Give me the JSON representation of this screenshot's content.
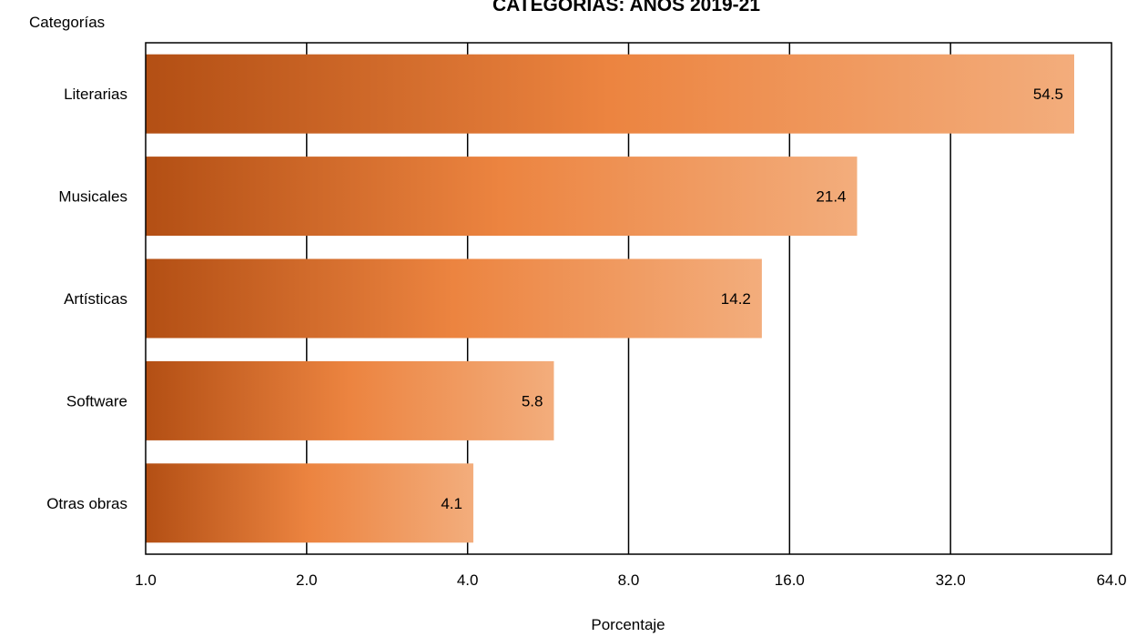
{
  "chart_data": {
    "type": "bar",
    "orientation": "horizontal",
    "title": "CATEGORÍAS: AÑOS 2019-21",
    "ylabel": "Categorías",
    "xlabel": "Porcentaje",
    "x_scale": "log2",
    "xlim": [
      1.0,
      64.0
    ],
    "x_ticks": [
      "1.0",
      "2.0",
      "4.0",
      "8.0",
      "16.0",
      "32.0",
      "64.0"
    ],
    "x_tick_values": [
      1,
      2,
      4,
      8,
      16,
      32,
      64
    ],
    "grid": "vertical major lines",
    "categories": [
      "Literarias",
      "Musicales",
      "Artísticas",
      "Software",
      "Otras obras"
    ],
    "values": [
      54.5,
      21.4,
      14.2,
      5.8,
      4.1
    ],
    "data_labels": [
      "54.5",
      "21.4",
      "14.2",
      "5.8",
      "4.1"
    ],
    "colors": {
      "bar_dark": "#b34f14",
      "bar_mid": "#ec8440",
      "bar_light": "#f3ad7c",
      "grid": "#000000",
      "text": "#000000"
    }
  }
}
